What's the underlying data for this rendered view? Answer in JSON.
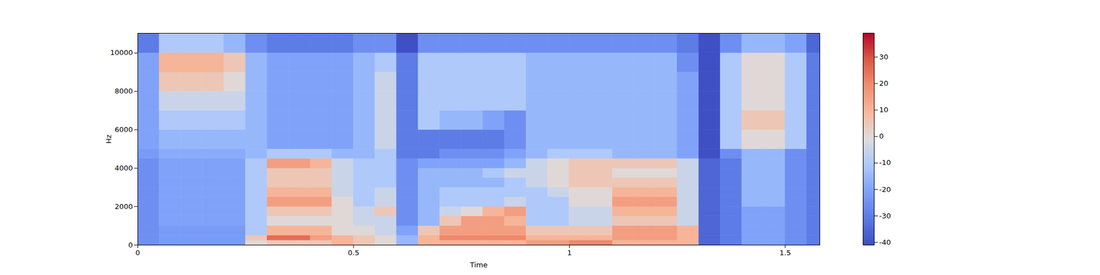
{
  "chart_data": {
    "type": "heatmap",
    "x_label": "Time",
    "y_label": "Hz",
    "color": "coolwarm",
    "xlim": [
      0,
      1.58
    ],
    "ylim": [
      0,
      11025
    ],
    "xticks": [
      0,
      0.5,
      1,
      1.5
    ],
    "yticks": [
      0,
      2000,
      4000,
      6000,
      8000,
      10000
    ],
    "x_edges": [
      0,
      0.05,
      0.1,
      0.15,
      0.2,
      0.25,
      0.3,
      0.35,
      0.4,
      0.45,
      0.5,
      0.55,
      0.6,
      0.65,
      0.7,
      0.75,
      0.8,
      0.85,
      0.9,
      0.95,
      1.0,
      1.05,
      1.1,
      1.15,
      1.2,
      1.25,
      1.3,
      1.35,
      1.4,
      1.45,
      1.5,
      1.55,
      1.58
    ],
    "y_edges": [
      0,
      250,
      500,
      1000,
      1500,
      2000,
      2500,
      3000,
      3500,
      4000,
      4500,
      5000,
      6000,
      7000,
      8000,
      9000,
      10000,
      11025
    ],
    "values": [
      [
        -25,
        -22,
        -22,
        -22,
        -22,
        0,
        5,
        5,
        5,
        10,
        5,
        0,
        -15,
        10,
        10,
        10,
        10,
        10,
        15,
        15,
        20,
        20,
        10,
        10,
        10,
        10,
        -35,
        -30,
        -20,
        -20,
        -25,
        -30
      ],
      [
        -25,
        -22,
        -22,
        -22,
        -22,
        5,
        25,
        25,
        15,
        10,
        5,
        0,
        -15,
        10,
        20,
        20,
        20,
        20,
        10,
        10,
        10,
        10,
        15,
        15,
        15,
        10,
        -35,
        -30,
        -20,
        -20,
        -25,
        -30
      ],
      [
        -25,
        -22,
        -22,
        -22,
        -22,
        -10,
        10,
        10,
        10,
        0,
        0,
        -5,
        -20,
        5,
        15,
        15,
        15,
        15,
        5,
        5,
        5,
        5,
        15,
        15,
        15,
        10,
        -35,
        -30,
        -20,
        -20,
        -25,
        -30
      ],
      [
        -25,
        -20,
        -20,
        -20,
        -20,
        -10,
        0,
        0,
        0,
        0,
        -5,
        -5,
        -25,
        -15,
        5,
        15,
        15,
        10,
        -10,
        -10,
        -5,
        -5,
        5,
        5,
        5,
        -5,
        -35,
        -30,
        -20,
        -20,
        -25,
        -30
      ],
      [
        -25,
        -20,
        -20,
        -20,
        -20,
        -10,
        5,
        5,
        5,
        0,
        -5,
        5,
        -25,
        -15,
        -5,
        0,
        10,
        15,
        -10,
        -10,
        -5,
        -5,
        10,
        10,
        10,
        -5,
        -35,
        -30,
        -20,
        -20,
        -25,
        -30
      ],
      [
        -25,
        -20,
        -20,
        -20,
        -20,
        -10,
        15,
        15,
        15,
        0,
        -10,
        -5,
        -25,
        -15,
        -10,
        -10,
        -10,
        -5,
        -10,
        -10,
        0,
        0,
        15,
        15,
        15,
        -5,
        -35,
        -30,
        -15,
        -15,
        -25,
        -30
      ],
      [
        -25,
        -20,
        -20,
        -20,
        -20,
        -10,
        10,
        10,
        10,
        -5,
        -10,
        -5,
        -25,
        -15,
        -10,
        -10,
        -10,
        -10,
        -10,
        -5,
        0,
        0,
        10,
        10,
        10,
        -5,
        -35,
        -30,
        -15,
        -15,
        -25,
        -30
      ],
      [
        -25,
        -20,
        -20,
        -20,
        -20,
        -10,
        5,
        5,
        5,
        -5,
        -10,
        -10,
        -25,
        -15,
        -15,
        -15,
        -15,
        -10,
        -5,
        0,
        5,
        5,
        5,
        5,
        5,
        -5,
        -35,
        -30,
        -15,
        -15,
        -25,
        -30
      ],
      [
        -25,
        -20,
        -20,
        -20,
        -20,
        -10,
        5,
        5,
        5,
        -5,
        -10,
        -10,
        -25,
        -15,
        -15,
        -15,
        -10,
        -5,
        -5,
        0,
        5,
        5,
        0,
        0,
        0,
        -5,
        -35,
        -30,
        -15,
        -15,
        -25,
        -30
      ],
      [
        -25,
        -20,
        -20,
        -20,
        -20,
        -10,
        15,
        15,
        10,
        -5,
        -10,
        -10,
        -25,
        -20,
        -20,
        -20,
        -20,
        -15,
        -5,
        0,
        5,
        5,
        5,
        5,
        5,
        -5,
        -35,
        -30,
        -15,
        -15,
        -25,
        -30
      ],
      [
        -22,
        -18,
        -18,
        -18,
        -18,
        -15,
        -10,
        -10,
        -10,
        -15,
        -15,
        -10,
        -30,
        -30,
        -25,
        -25,
        -25,
        -20,
        -15,
        -10,
        -10,
        -10,
        -15,
        -15,
        -15,
        -20,
        -40,
        -25,
        -15,
        -15,
        -25,
        -30
      ],
      [
        -20,
        -15,
        -15,
        -15,
        -15,
        -15,
        -20,
        -20,
        -20,
        -20,
        -15,
        -5,
        -30,
        -30,
        -30,
        -30,
        -30,
        -25,
        -15,
        -15,
        -15,
        -15,
        -15,
        -15,
        -15,
        -20,
        -40,
        -10,
        0,
        0,
        -10,
        -30
      ],
      [
        -20,
        -10,
        -10,
        -10,
        -10,
        -15,
        -20,
        -20,
        -20,
        -20,
        -15,
        -5,
        -30,
        -10,
        -15,
        -15,
        -20,
        -25,
        -15,
        -15,
        -15,
        -15,
        -15,
        -15,
        -15,
        -20,
        -40,
        -10,
        5,
        5,
        -10,
        -30
      ],
      [
        -20,
        -5,
        -5,
        -5,
        -5,
        -15,
        -20,
        -20,
        -20,
        -20,
        -15,
        -5,
        -30,
        -10,
        -10,
        -10,
        -10,
        -10,
        -15,
        -15,
        -15,
        -15,
        -15,
        -15,
        -15,
        -20,
        -40,
        -10,
        0,
        0,
        -10,
        -30
      ],
      [
        -20,
        5,
        5,
        5,
        0,
        -15,
        -20,
        -20,
        -20,
        -20,
        -15,
        -5,
        -30,
        -10,
        -10,
        -10,
        -10,
        -10,
        -15,
        -15,
        -15,
        -15,
        -15,
        -15,
        -15,
        -20,
        -40,
        -10,
        0,
        0,
        -10,
        -30
      ],
      [
        -20,
        10,
        10,
        10,
        5,
        -15,
        -20,
        -20,
        -20,
        -20,
        -15,
        -10,
        -30,
        -10,
        -10,
        -10,
        -10,
        -10,
        -15,
        -15,
        -15,
        -15,
        -15,
        -15,
        -15,
        -25,
        -40,
        -10,
        0,
        0,
        -10,
        -30
      ],
      [
        -30,
        -10,
        -10,
        -10,
        -15,
        -25,
        -30,
        -30,
        -30,
        -30,
        -25,
        -25,
        -40,
        -25,
        -25,
        -25,
        -25,
        -25,
        -25,
        -25,
        -25,
        -25,
        -25,
        -25,
        -25,
        -30,
        -40,
        -25,
        -15,
        -15,
        -20,
        -35
      ]
    ],
    "colorbar": {
      "range": [
        -41,
        39
      ],
      "ticks": [
        -40,
        -30,
        -20,
        -10,
        0,
        10,
        20,
        30
      ]
    }
  }
}
